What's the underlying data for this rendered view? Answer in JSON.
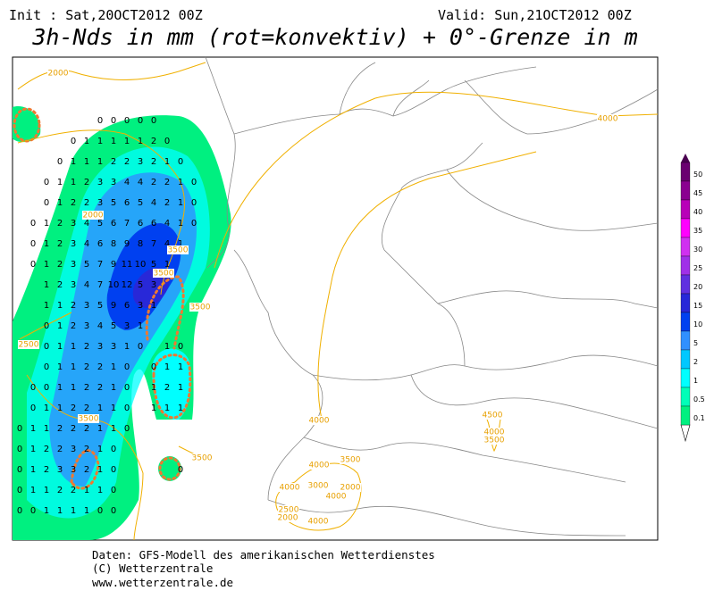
{
  "header": {
    "init": "Init : Sat,20OCT2012 00Z",
    "valid": "Valid: Sun,21OCT2012 00Z",
    "title": "3h-Nds in mm (rot=konvektiv) + 0°-Grenze in m"
  },
  "colorbar": [
    {
      "value": 50,
      "color": "#6a0070"
    },
    {
      "value": 45,
      "color": "#8a0090"
    },
    {
      "value": 40,
      "color": "#b800b8"
    },
    {
      "value": 35,
      "color": "#ff00ff"
    },
    {
      "value": 30,
      "color": "#d030f0"
    },
    {
      "value": 25,
      "color": "#a030e8"
    },
    {
      "value": 20,
      "color": "#6030e0"
    },
    {
      "value": 15,
      "color": "#2828d8"
    },
    {
      "value": 10,
      "color": "#0040f0"
    },
    {
      "value": 5,
      "color": "#3090ff"
    },
    {
      "value": 2,
      "color": "#00c8ff"
    },
    {
      "value": 1,
      "color": "#00ffff"
    },
    {
      "value": 0.5,
      "color": "#00ffb8"
    },
    {
      "value": 0.1,
      "color": "#00f080"
    }
  ],
  "contour_labels": [
    2000,
    4000,
    2000,
    3500,
    3500,
    3500,
    2500,
    3500,
    3500,
    4000,
    4500,
    4000,
    3500,
    4000,
    3500,
    3000,
    2000,
    4000,
    2500,
    2000,
    4000,
    4000
  ],
  "precip_grid": [
    [
      null,
      null,
      null,
      null,
      null,
      null,
      0,
      0,
      0,
      0,
      0,
      null,
      null,
      null,
      null
    ],
    [
      null,
      null,
      null,
      null,
      0,
      1,
      1,
      1,
      1,
      1,
      2,
      0,
      null,
      null,
      null
    ],
    [
      null,
      null,
      null,
      0,
      1,
      1,
      1,
      2,
      2,
      3,
      2,
      1,
      0,
      null,
      null
    ],
    [
      null,
      null,
      0,
      1,
      1,
      2,
      3,
      3,
      4,
      4,
      2,
      2,
      1,
      0,
      null
    ],
    [
      null,
      null,
      0,
      1,
      2,
      2,
      3,
      5,
      6,
      5,
      4,
      2,
      1,
      0,
      null
    ],
    [
      null,
      0,
      1,
      2,
      3,
      4,
      5,
      6,
      7,
      6,
      6,
      4,
      1,
      0,
      null
    ],
    [
      null,
      0,
      1,
      2,
      3,
      4,
      6,
      8,
      9,
      8,
      7,
      4,
      1,
      null,
      null
    ],
    [
      null,
      0,
      1,
      2,
      3,
      5,
      7,
      9,
      11,
      10,
      5,
      1,
      null,
      null,
      null
    ],
    [
      null,
      null,
      1,
      2,
      3,
      4,
      7,
      10,
      12,
      5,
      3,
      null,
      null,
      null,
      null
    ],
    [
      null,
      null,
      1,
      1,
      2,
      3,
      5,
      9,
      6,
      3,
      1,
      null,
      null,
      null,
      null
    ],
    [
      null,
      null,
      0,
      1,
      2,
      3,
      4,
      5,
      3,
      1,
      null,
      null,
      null,
      null,
      null
    ],
    [
      null,
      null,
      0,
      1,
      1,
      2,
      3,
      3,
      1,
      0,
      null,
      1,
      0,
      null,
      null
    ],
    [
      null,
      null,
      0,
      1,
      1,
      2,
      2,
      1,
      0,
      null,
      0,
      1,
      1,
      null,
      null
    ],
    [
      null,
      0,
      0,
      1,
      1,
      2,
      2,
      1,
      0,
      null,
      1,
      2,
      1,
      null,
      null
    ],
    [
      null,
      0,
      1,
      1,
      2,
      2,
      1,
      1,
      0,
      null,
      1,
      1,
      1,
      null,
      null
    ],
    [
      0,
      1,
      1,
      2,
      2,
      2,
      1,
      1,
      0,
      null,
      null,
      null,
      null,
      null,
      null
    ],
    [
      0,
      1,
      2,
      2,
      3,
      2,
      1,
      0,
      null,
      null,
      null,
      null,
      null,
      null,
      null
    ],
    [
      0,
      1,
      2,
      3,
      3,
      2,
      1,
      0,
      null,
      null,
      null,
      null,
      0,
      null,
      null
    ],
    [
      0,
      1,
      1,
      2,
      2,
      1,
      1,
      0,
      null,
      null,
      null,
      null,
      null,
      null,
      null
    ],
    [
      0,
      0,
      1,
      1,
      1,
      1,
      0,
      0,
      null,
      null,
      null,
      null,
      null,
      null,
      null
    ]
  ],
  "footer": [
    "Daten: GFS-Modell des amerikanischen Wetterdienstes",
    "(C) Wetterzentrale",
    "www.wetterzentrale.de"
  ]
}
